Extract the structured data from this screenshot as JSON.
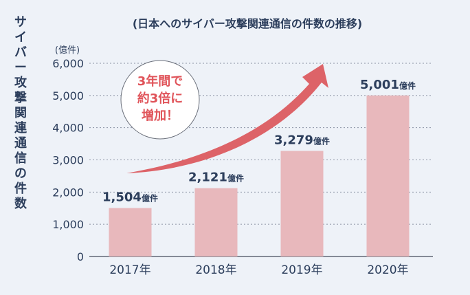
{
  "chart_data": {
    "type": "bar",
    "title": "(日本へのサイバー攻撃関連通信の件数の推移)",
    "ylabel": "サイバー攻撃関連通信の件数",
    "yunit": "(億件)",
    "ylim": [
      0,
      6000
    ],
    "yticks": [
      "0",
      "1,000",
      "2,000",
      "3,000",
      "4,000",
      "5,000",
      "6,000"
    ],
    "categories": [
      "2017年",
      "2018年",
      "2019年",
      "2020年"
    ],
    "values": [
      1504,
      2121,
      3279,
      5001
    ],
    "data_labels": [
      "1,504",
      "2,121",
      "3,279",
      "5,001"
    ],
    "data_label_unit": "億件",
    "grid": true,
    "annotation": {
      "lines": [
        "3年間で",
        "約3倍に",
        "増加！"
      ]
    },
    "colors": {
      "bar": "#e8b8bc",
      "arrow": "#dd6368",
      "annotation_text": "#e0545a",
      "text": "#2c3e5c",
      "background": "#eef2f8"
    }
  }
}
